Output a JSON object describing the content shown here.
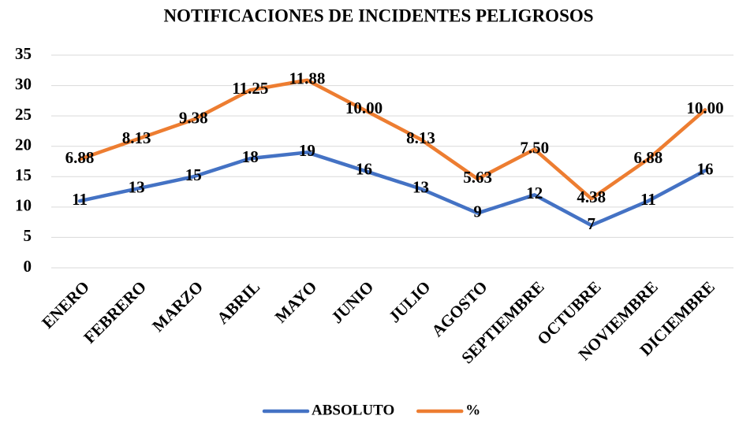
{
  "chart_data": {
    "type": "line",
    "stacked": true,
    "title": "NOTIFICACIONES DE INCIDENTES PELIGROSOS",
    "categories": [
      "ENERO",
      "FEBRERO",
      "MARZO",
      "ABRIL",
      "MAYO",
      "JUNIO",
      "JULIO",
      "AGOSTO",
      "SEPTIEMBRE",
      "OCTUBRE",
      "NOVIEMBRE",
      "DICIEMBRE"
    ],
    "series": [
      {
        "name": "ABSOLUTO",
        "color": "#4472c4",
        "values": [
          11,
          13,
          15,
          18,
          19,
          16,
          13,
          9,
          12,
          7,
          11,
          16
        ]
      },
      {
        "name": "%",
        "color": "#ed7d31",
        "values": [
          6.88,
          8.13,
          9.38,
          11.25,
          11.88,
          10,
          8.13,
          5.63,
          7.5,
          4.38,
          6.88,
          10
        ],
        "value_labels": [
          "6.88",
          "8.13",
          "9.38",
          "11.25",
          "11.88",
          "10.00",
          "8.13",
          "5.63",
          "7.50",
          "4.38",
          "6.88",
          "10.00"
        ]
      }
    ],
    "ylim": [
      0,
      35
    ],
    "yticks": [
      0,
      5,
      10,
      15,
      20,
      25,
      30,
      35
    ],
    "grid": true,
    "legend": "bottom"
  }
}
